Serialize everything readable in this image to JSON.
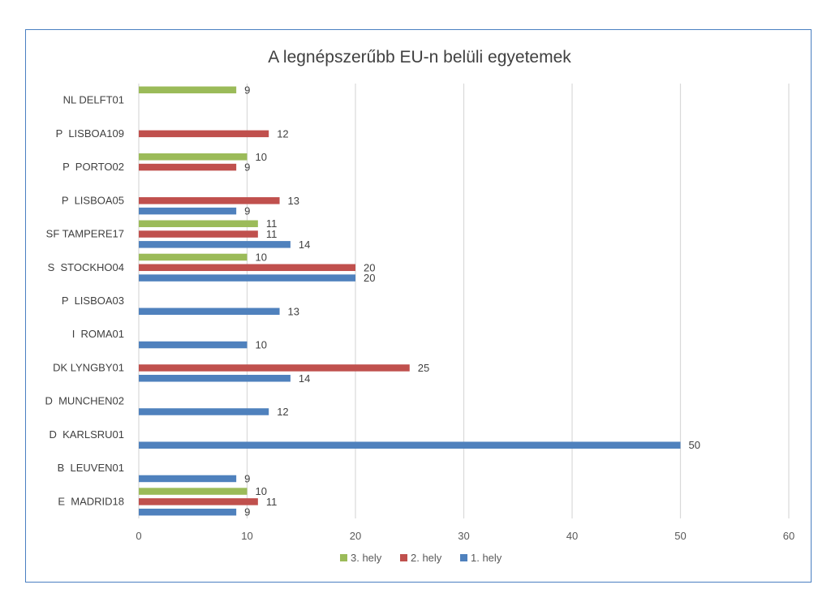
{
  "chart_data": {
    "type": "bar",
    "orientation": "horizontal",
    "title": "A legnépszerűbb EU-n belüli egyetemek",
    "xlabel": "",
    "ylabel": "",
    "xlim": [
      0,
      60
    ],
    "x_ticks": [
      0,
      10,
      20,
      30,
      40,
      50,
      60
    ],
    "grid": true,
    "legend_position": "bottom",
    "categories": [
      "NL DELFT01",
      "P  LISBOA109",
      "P  PORTO02",
      "P  LISBOA05",
      "SF TAMPERE17",
      "S  STOCKHO04",
      "P  LISBOA03",
      "I  ROMA01",
      "DK LYNGBY01",
      "D  MUNCHEN02",
      "D  KARLSRU01",
      "B  LEUVEN01",
      "E  MADRID18"
    ],
    "series": [
      {
        "name": "3. hely",
        "color": "#9bbb59",
        "values": [
          9,
          null,
          10,
          null,
          11,
          10,
          null,
          null,
          null,
          null,
          null,
          null,
          10
        ]
      },
      {
        "name": "2. hely",
        "color": "#c0504d",
        "values": [
          null,
          12,
          9,
          13,
          11,
          20,
          null,
          null,
          25,
          null,
          null,
          null,
          11
        ]
      },
      {
        "name": "1. hely",
        "color": "#4f81bd",
        "values": [
          null,
          null,
          null,
          9,
          14,
          20,
          13,
          10,
          14,
          12,
          50,
          9,
          9
        ]
      }
    ]
  }
}
